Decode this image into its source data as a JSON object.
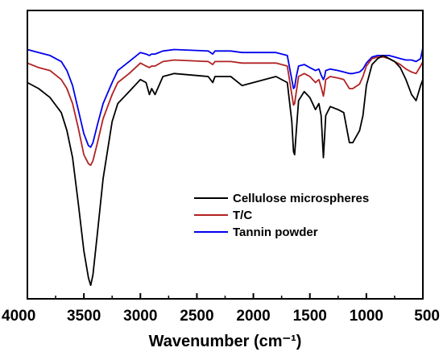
{
  "chart_data": {
    "type": "line",
    "xlabel": "Wavenumber (cm⁻¹)",
    "xlim": [
      4000,
      500
    ],
    "x_reversed": true,
    "x_ticks": [
      4000,
      3500,
      3000,
      2500,
      2000,
      1500,
      1000,
      500
    ],
    "y_ticks_shown": false,
    "grid": false,
    "legend_position": "center-right",
    "series": [
      {
        "name": "Cellulose microspheres",
        "color": "#000000",
        "x": [
          4000,
          3900,
          3800,
          3700,
          3650,
          3600,
          3550,
          3500,
          3460,
          3440,
          3420,
          3380,
          3330,
          3250,
          3200,
          3100,
          3000,
          2950,
          2920,
          2900,
          2870,
          2800,
          2700,
          2400,
          2360,
          2340,
          2200,
          2100,
          1900,
          1800,
          1700,
          1660,
          1645,
          1635,
          1620,
          1600,
          1550,
          1500,
          1450,
          1420,
          1400,
          1380,
          1370,
          1360,
          1320,
          1250,
          1200,
          1150,
          1120,
          1060,
          1030,
          1000,
          950,
          900,
          850,
          800,
          750,
          700,
          650,
          600,
          560,
          520,
          500
        ],
        "y": [
          68,
          66,
          63,
          58,
          52,
          43,
          28,
          12,
          3,
          0.5,
          4,
          18,
          36,
          55,
          61,
          65,
          69,
          68,
          64,
          66,
          64,
          70,
          71,
          70,
          68,
          70,
          70,
          67,
          69,
          70,
          68,
          55,
          45,
          44,
          52,
          62,
          65,
          63,
          59,
          61,
          57,
          43,
          50,
          57,
          60,
          59,
          58,
          48,
          48,
          52,
          57,
          67,
          74,
          76,
          77,
          76,
          75,
          73,
          69,
          64,
          62,
          67,
          69
        ]
      },
      {
        "name": "T/C",
        "color": "#b22222",
        "x": [
          4000,
          3900,
          3800,
          3700,
          3650,
          3600,
          3550,
          3500,
          3460,
          3440,
          3420,
          3380,
          3330,
          3250,
          3200,
          3100,
          3000,
          2950,
          2920,
          2900,
          2870,
          2800,
          2700,
          2400,
          2360,
          2340,
          2200,
          2100,
          1900,
          1800,
          1700,
          1660,
          1645,
          1635,
          1620,
          1600,
          1550,
          1500,
          1450,
          1420,
          1400,
          1380,
          1370,
          1360,
          1320,
          1250,
          1200,
          1150,
          1120,
          1060,
          1030,
          1000,
          950,
          900,
          850,
          800,
          750,
          700,
          650,
          600,
          560,
          520,
          500
        ],
        "y": [
          74.5,
          73,
          72,
          69,
          66,
          61,
          53,
          44,
          41,
          40.5,
          42,
          48,
          56,
          64,
          68,
          71,
          74.5,
          73.5,
          73,
          73.5,
          73.5,
          75,
          75.5,
          75,
          74,
          75,
          75,
          74.5,
          74.5,
          74.5,
          73.5,
          64,
          60.5,
          61,
          65,
          70,
          71,
          70,
          68,
          69,
          66.5,
          63.5,
          66,
          69,
          70,
          69.5,
          69,
          66,
          66,
          67.5,
          70,
          73.5,
          76,
          76.5,
          76.5,
          76,
          75,
          74,
          72.5,
          71.5,
          71,
          73.5,
          75
        ]
      },
      {
        "name": "Tannin powder",
        "color": "#0000ee",
        "x": [
          4000,
          3900,
          3800,
          3700,
          3650,
          3600,
          3550,
          3500,
          3460,
          3440,
          3420,
          3380,
          3330,
          3250,
          3200,
          3100,
          3000,
          2950,
          2920,
          2900,
          2870,
          2800,
          2700,
          2400,
          2360,
          2340,
          2200,
          2100,
          1900,
          1800,
          1700,
          1660,
          1645,
          1635,
          1620,
          1600,
          1550,
          1500,
          1450,
          1420,
          1400,
          1380,
          1370,
          1360,
          1320,
          1250,
          1200,
          1150,
          1120,
          1060,
          1030,
          1000,
          950,
          900,
          850,
          800,
          750,
          700,
          650,
          600,
          560,
          520,
          500
        ],
        "y": [
          79,
          78,
          77,
          75,
          72,
          67,
          59,
          51,
          47,
          46.5,
          48,
          54,
          61,
          68,
          72,
          75,
          78,
          77.5,
          77,
          77.5,
          77.5,
          78.5,
          79,
          78.5,
          77.5,
          78.5,
          78.5,
          78,
          78,
          78,
          77,
          69,
          66,
          66.5,
          70,
          73.5,
          74,
          73,
          72,
          72.5,
          70.5,
          69,
          70,
          72,
          72.5,
          72,
          71.5,
          71,
          71,
          71.5,
          72.5,
          74.5,
          76.5,
          77,
          77,
          77,
          76.5,
          76,
          75.5,
          75.5,
          75,
          76,
          79.5
        ]
      }
    ]
  }
}
